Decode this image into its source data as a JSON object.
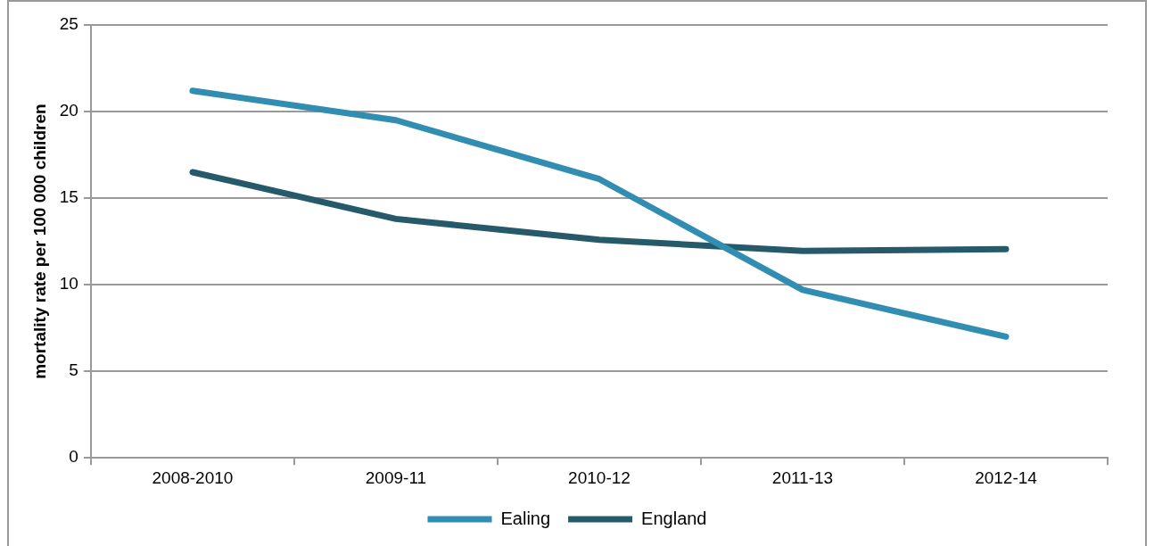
{
  "chart_data": {
    "type": "line",
    "ylabel": "mortality rate per 100 000 children",
    "categories": [
      "2008-2010",
      "2009-11",
      "2010-12",
      "2011-13",
      "2012-14"
    ],
    "series": [
      {
        "name": "Ealing",
        "color": "#318eb2",
        "values": [
          21.2,
          19.5,
          16.1,
          9.7,
          7.0
        ]
      },
      {
        "name": "England",
        "color": "#265a6a",
        "values": [
          16.5,
          13.8,
          12.6,
          11.95,
          12.05
        ]
      }
    ],
    "ylim": [
      0,
      25
    ],
    "yticks": [
      0,
      5,
      10,
      15,
      20,
      25
    ],
    "grid": "y",
    "legend": "bottom",
    "marker": "none",
    "line_style": "solid"
  }
}
